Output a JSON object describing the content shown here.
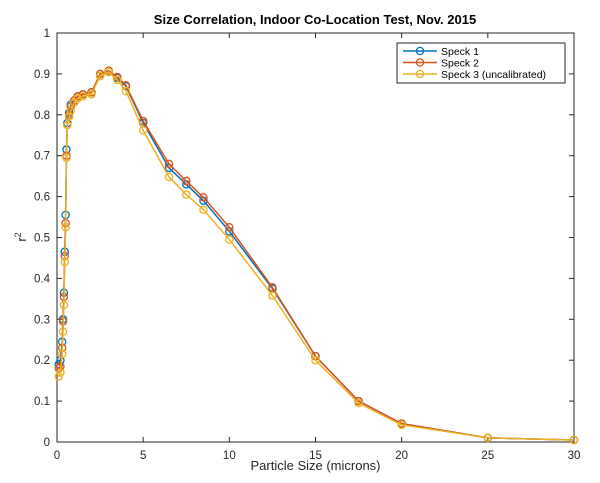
{
  "chart_data": {
    "type": "line",
    "title": "Size Correlation, Indoor Co-Location Test, Nov. 2015",
    "xlabel": "Particle Size (microns)",
    "ylabel": "r",
    "ylabel_superscript": "2",
    "xlim": [
      0,
      30
    ],
    "ylim": [
      0,
      1
    ],
    "xticks": [
      0,
      5,
      10,
      15,
      20,
      25,
      30
    ],
    "yticks": [
      0,
      0.1,
      0.2,
      0.3,
      0.4,
      0.5,
      0.6,
      0.7,
      0.8,
      0.9,
      1
    ],
    "xtick_labels": [
      "0",
      "5",
      "10",
      "15",
      "20",
      "25",
      "30"
    ],
    "ytick_labels": [
      "0",
      "0.1",
      "0.2",
      "0.3",
      "0.4",
      "0.5",
      "0.6",
      "0.7",
      "0.8",
      "0.9",
      "1"
    ],
    "grid": false,
    "legend_position": "top-right",
    "marker": "open-circle",
    "series": [
      {
        "name": "Speck 1",
        "color": "#0072BD",
        "x": [
          0.1,
          0.2,
          0.3,
          0.35,
          0.4,
          0.45,
          0.5,
          0.55,
          0.6,
          0.7,
          0.8,
          1.0,
          1.2,
          1.5,
          2.0,
          2.5,
          3.0,
          3.5,
          4.0,
          5.0,
          6.5,
          7.5,
          8.5,
          10.0,
          12.5,
          15.0,
          17.5,
          20.0,
          25.0,
          30.0
        ],
        "y": [
          0.19,
          0.2,
          0.245,
          0.3,
          0.365,
          0.465,
          0.555,
          0.715,
          0.78,
          0.805,
          0.825,
          0.835,
          0.845,
          0.85,
          0.855,
          0.895,
          0.905,
          0.89,
          0.87,
          0.78,
          0.67,
          0.63,
          0.59,
          0.515,
          0.375,
          0.21,
          0.1,
          0.045,
          0.01,
          0.005
        ]
      },
      {
        "name": "Speck 2",
        "color": "#D95319",
        "x": [
          0.1,
          0.2,
          0.3,
          0.35,
          0.4,
          0.45,
          0.5,
          0.55,
          0.6,
          0.7,
          0.8,
          1.0,
          1.2,
          1.5,
          2.0,
          2.5,
          3.0,
          3.5,
          4.0,
          5.0,
          6.5,
          7.5,
          8.5,
          10.0,
          12.5,
          15.0,
          17.5,
          20.0,
          25.0,
          30.0
        ],
        "y": [
          0.18,
          0.185,
          0.23,
          0.295,
          0.355,
          0.455,
          0.535,
          0.7,
          0.775,
          0.8,
          0.82,
          0.835,
          0.845,
          0.85,
          0.855,
          0.9,
          0.908,
          0.892,
          0.872,
          0.785,
          0.68,
          0.638,
          0.598,
          0.525,
          0.378,
          0.21,
          0.1,
          0.045,
          0.01,
          0.005
        ]
      },
      {
        "name": "Speck 3 (uncalibrated)",
        "color": "#EDB120",
        "x": [
          0.1,
          0.2,
          0.3,
          0.35,
          0.4,
          0.45,
          0.5,
          0.55,
          0.6,
          0.7,
          0.8,
          1.0,
          1.2,
          1.5,
          2.0,
          2.5,
          3.0,
          3.5,
          4.0,
          5.0,
          6.5,
          7.5,
          8.5,
          10.0,
          12.5,
          15.0,
          17.5,
          20.0,
          25.0,
          30.0
        ],
        "y": [
          0.16,
          0.17,
          0.215,
          0.27,
          0.335,
          0.44,
          0.525,
          0.695,
          0.775,
          0.795,
          0.81,
          0.83,
          0.84,
          0.845,
          0.85,
          0.895,
          0.905,
          0.885,
          0.858,
          0.762,
          0.648,
          0.605,
          0.568,
          0.495,
          0.358,
          0.2,
          0.095,
          0.042,
          0.01,
          0.005
        ]
      }
    ]
  }
}
